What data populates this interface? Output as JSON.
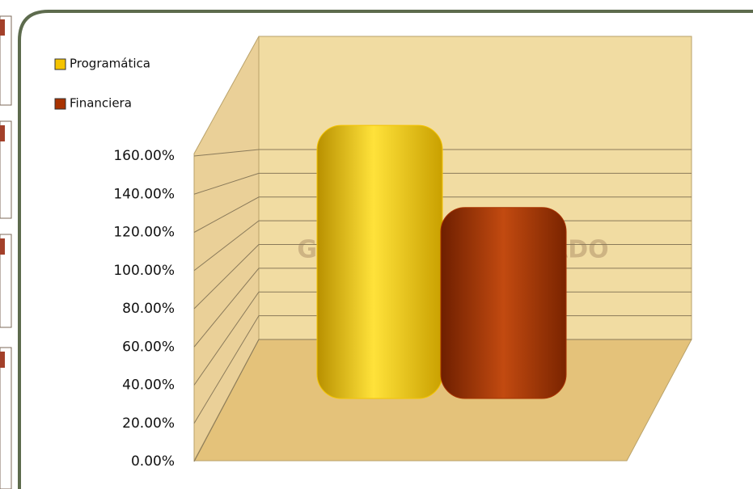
{
  "chart_data": {
    "type": "bar3d",
    "categories": [
      null
    ],
    "series": [
      {
        "name": "Programática",
        "color": "#f5c400",
        "values": [
          143
        ]
      },
      {
        "name": "Financiera",
        "color": "#a83200",
        "values": [
          100
        ]
      }
    ],
    "ylim": [
      0,
      160
    ],
    "yticks": [
      {
        "value": 0,
        "label": "0.00%"
      },
      {
        "value": 20,
        "label": "20.00%"
      },
      {
        "value": 40,
        "label": "40.00%"
      },
      {
        "value": 60,
        "label": "60.00%"
      },
      {
        "value": 80,
        "label": "80.00%"
      },
      {
        "value": 100,
        "label": "100.00%"
      },
      {
        "value": 120,
        "label": "120.00%"
      },
      {
        "value": 140,
        "label": "140.00%"
      },
      {
        "value": 160,
        "label": "160.00%"
      }
    ],
    "grid": true,
    "legend": "top-left"
  }
}
